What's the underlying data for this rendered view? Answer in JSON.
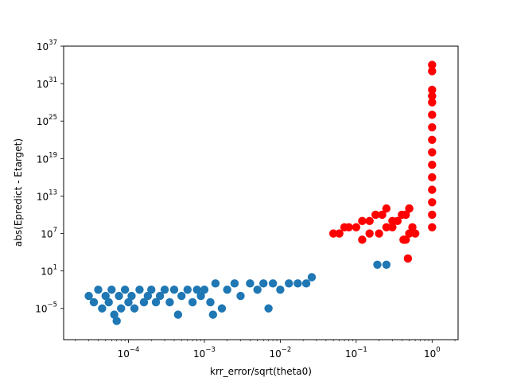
{
  "chart_data": {
    "type": "scatter",
    "title": "",
    "xlabel": "krr_error/sqrt(theta0)",
    "ylabel": "abs(Epredict - Etarget)",
    "xscale": "log",
    "yscale": "log",
    "xlim": [
      1.4e-05,
      2.2
    ],
    "ylim": [
      1e-10,
      1e+37
    ],
    "x_ticks": [
      {
        "value": 0.0001,
        "base": "10",
        "exp": "−4"
      },
      {
        "value": 0.001,
        "base": "10",
        "exp": "−3"
      },
      {
        "value": 0.01,
        "base": "10",
        "exp": "−2"
      },
      {
        "value": 0.1,
        "base": "10",
        "exp": "−1"
      },
      {
        "value": 1,
        "base": "10",
        "exp": "0"
      }
    ],
    "y_ticks": [
      {
        "value": 1e-05,
        "base": "10",
        "exp": "−5"
      },
      {
        "value": 10.0,
        "base": "10",
        "exp": "1"
      },
      {
        "value": 10000000.0,
        "base": "10",
        "exp": "7"
      },
      {
        "value": 10000000000000.0,
        "base": "10",
        "exp": "13"
      },
      {
        "value": 1e+19,
        "base": "10",
        "exp": "19"
      },
      {
        "value": 1e+25,
        "base": "10",
        "exp": "25"
      },
      {
        "value": 1e+31,
        "base": "10",
        "exp": "31"
      },
      {
        "value": 1e+37,
        "base": "10",
        "exp": "37"
      }
    ],
    "grid": false,
    "legend": "none",
    "series": [
      {
        "color": "#1f77b4",
        "points": [
          [
            3e-05,
            0.001
          ],
          [
            3.5e-05,
            0.0001
          ],
          [
            4e-05,
            0.01
          ],
          [
            4.5e-05,
            1e-05
          ],
          [
            5e-05,
            0.001
          ],
          [
            5.5e-05,
            0.0001
          ],
          [
            6e-05,
            0.01
          ],
          [
            6.5e-05,
            1e-06
          ],
          [
            7e-05,
            1e-07
          ],
          [
            7.5e-05,
            0.001
          ],
          [
            8e-05,
            1e-05
          ],
          [
            9e-05,
            0.01
          ],
          [
            0.0001,
            0.0001
          ],
          [
            0.00011,
            0.001
          ],
          [
            0.00012,
            1e-05
          ],
          [
            0.00014,
            0.01
          ],
          [
            0.00016,
            0.0001
          ],
          [
            0.00018,
            0.001
          ],
          [
            0.0002,
            0.01
          ],
          [
            0.00023,
            0.0001
          ],
          [
            0.00026,
            0.001
          ],
          [
            0.0003,
            0.01
          ],
          [
            0.00035,
            0.0001
          ],
          [
            0.0004,
            0.01
          ],
          [
            0.00045,
            1e-06
          ],
          [
            0.0005,
            0.001
          ],
          [
            0.0006,
            0.01
          ],
          [
            0.0007,
            0.0001
          ],
          [
            0.0008,
            0.01
          ],
          [
            0.0009,
            0.001
          ],
          [
            0.001,
            0.01
          ],
          [
            0.0012,
            0.0001
          ],
          [
            0.0014,
            0.1
          ],
          [
            0.0017,
            1e-05
          ],
          [
            0.002,
            0.01
          ],
          [
            0.0025,
            0.1
          ],
          [
            0.003,
            0.001
          ],
          [
            0.004,
            0.1
          ],
          [
            0.005,
            0.01
          ],
          [
            0.006,
            0.1
          ],
          [
            0.008,
            0.1
          ],
          [
            0.01,
            0.01
          ],
          [
            0.013,
            0.1
          ],
          [
            0.017,
            0.1
          ],
          [
            0.022,
            0.1
          ],
          [
            0.026,
            1.0
          ],
          [
            0.0013,
            1e-06
          ],
          [
            0.007,
            1e-05
          ],
          [
            0.19,
            100.0
          ],
          [
            0.25,
            100.0
          ]
        ]
      },
      {
        "color": "#ff0000",
        "points": [
          [
            0.05,
            10000000.0
          ],
          [
            0.06,
            10000000.0
          ],
          [
            0.07,
            100000000.0
          ],
          [
            0.08,
            100000000.0
          ],
          [
            0.1,
            100000000.0
          ],
          [
            0.12,
            1000000000.0
          ],
          [
            0.15,
            1000000000.0
          ],
          [
            0.18,
            10000000000.0
          ],
          [
            0.22,
            10000000000.0
          ],
          [
            0.25,
            100000000000.0
          ],
          [
            0.12,
            1000000.0
          ],
          [
            0.15,
            10000000.0
          ],
          [
            0.2,
            10000000.0
          ],
          [
            0.25,
            100000000.0
          ],
          [
            0.3,
            100000000.0
          ],
          [
            0.3,
            1000000000.0
          ],
          [
            0.35,
            1000000000.0
          ],
          [
            0.4,
            10000000000.0
          ],
          [
            0.45,
            10000000000.0
          ],
          [
            0.5,
            100000000000.0
          ],
          [
            0.42,
            1000000.0
          ],
          [
            0.45,
            1000000.0
          ],
          [
            0.5,
            10000000.0
          ],
          [
            0.55,
            100000000.0
          ],
          [
            0.6,
            10000000.0
          ],
          [
            0.48,
            1000.0
          ],
          [
            0.5,
            100000000000.0
          ],
          [
            1.0,
            100000000.0
          ],
          [
            1.0,
            10000000000.0
          ],
          [
            1.0,
            1000000000000.0
          ],
          [
            1.0,
            100000000000000.0
          ],
          [
            1.0,
            1e+16
          ],
          [
            1.0,
            1e+18
          ],
          [
            1.0,
            1e+20
          ],
          [
            1.0,
            1e+22
          ],
          [
            1.0,
            1e+24
          ],
          [
            1.0,
            1e+26
          ],
          [
            1.0,
            1e+28
          ],
          [
            1.0,
            1e+29
          ],
          [
            1.0,
            1e+30
          ],
          [
            1.0,
            1e+33
          ],
          [
            1.0,
            1e+34
          ]
        ]
      }
    ]
  }
}
